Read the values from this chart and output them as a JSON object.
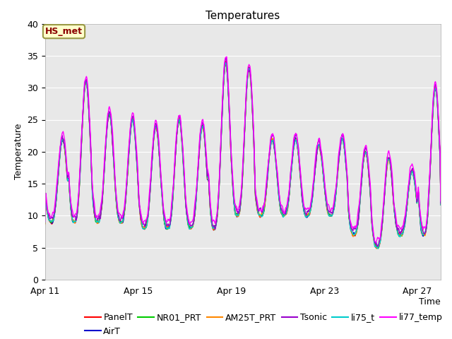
{
  "title": "Temperatures",
  "xlabel": "Time",
  "ylabel": "Temperature",
  "ylim": [
    0,
    40
  ],
  "yticks": [
    0,
    5,
    10,
    15,
    20,
    25,
    30,
    35,
    40
  ],
  "xtick_labels": [
    "Apr 11",
    "Apr 15",
    "Apr 19",
    "Apr 23",
    "Apr 27"
  ],
  "xtick_positions": [
    0,
    4,
    8,
    12,
    16
  ],
  "annotation_text": "HS_met",
  "series_colors": {
    "PanelT": "#ff0000",
    "AirT": "#0000cc",
    "NR01_PRT": "#00cc00",
    "AM25T_PRT": "#ff8800",
    "Tsonic": "#9900cc",
    "li75_t": "#00cccc",
    "li77_temp": "#ff00ff"
  },
  "background_color": "#e8e8e8",
  "fig_background": "#ffffff",
  "title_fontsize": 11,
  "axis_fontsize": 9,
  "legend_fontsize": 9,
  "peak_pattern": [
    22,
    31,
    26,
    25,
    24,
    25,
    24,
    34,
    33,
    22,
    22,
    21,
    22,
    20,
    19,
    17,
    30
  ],
  "min_pattern": [
    9,
    9,
    9,
    9,
    8,
    8,
    8,
    8,
    10,
    10,
    10,
    10,
    10,
    7,
    5,
    7,
    7
  ]
}
